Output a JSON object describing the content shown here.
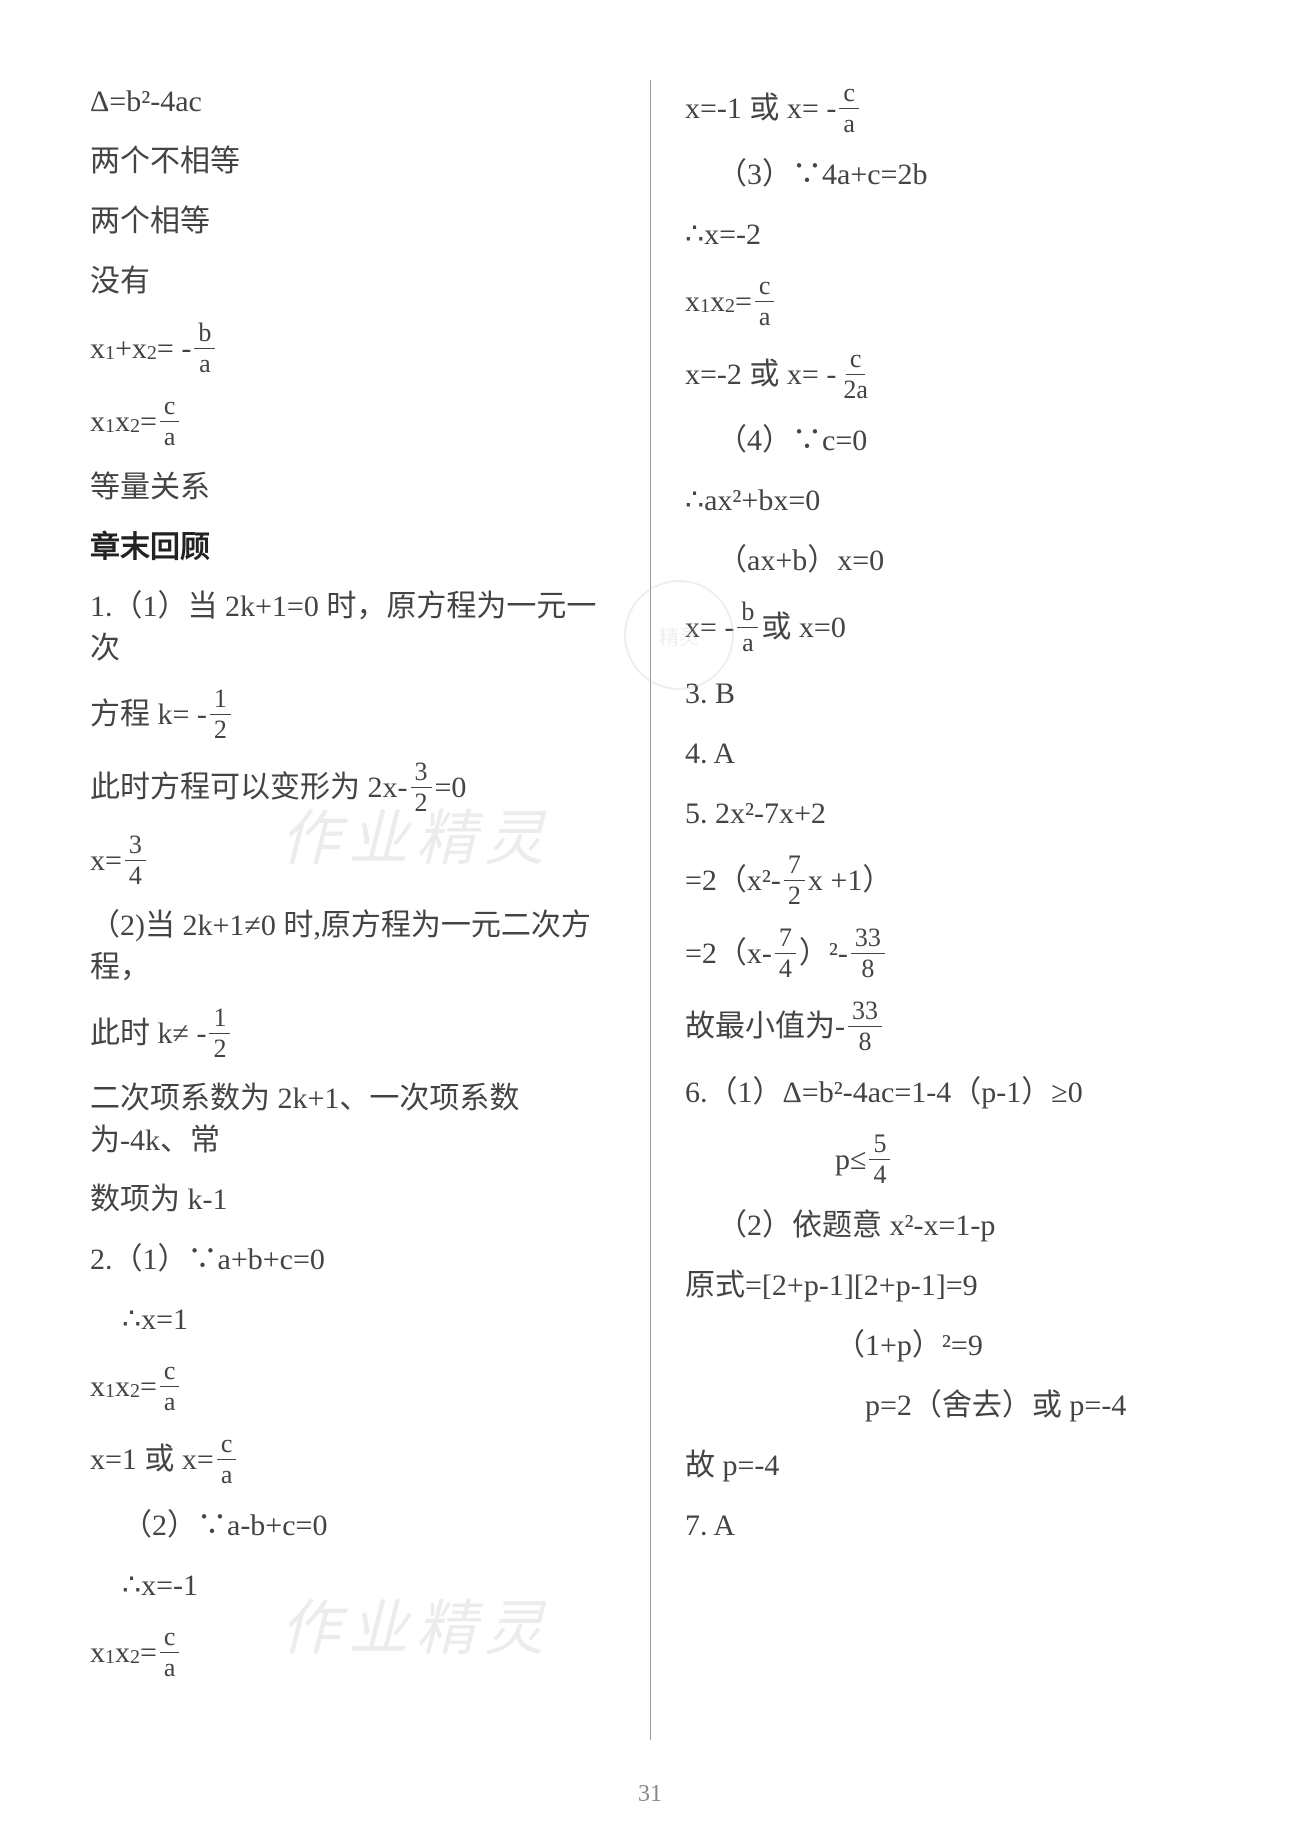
{
  "page_number": "31",
  "text_color": "#444444",
  "bold_color": "#222222",
  "background_color": "#ffffff",
  "divider_color": "#999999",
  "base_fontsize": 30,
  "watermark_text": "作业精灵",
  "watermark_color": "rgba(200,200,200,0.35)",
  "left": [
    {
      "t": "Δ=b²-4ac"
    },
    {
      "t": "两个不相等"
    },
    {
      "t": "两个相等"
    },
    {
      "t": "没有"
    },
    {
      "parts": [
        "x",
        {
          "sub": "1"
        },
        "+x",
        {
          "sub": "2"
        },
        "= -",
        {
          "frac": [
            "b",
            "a"
          ]
        }
      ]
    },
    {
      "parts": [
        "x",
        {
          "sub": "1"
        },
        "x",
        {
          "sub": "2"
        },
        "=",
        {
          "frac": [
            "c",
            "a"
          ]
        }
      ]
    },
    {
      "t": "等量关系"
    },
    {
      "t": "章末回顾",
      "bold": true
    },
    {
      "t": "1.（1）当 2k+1=0 时，原方程为一元一次"
    },
    {
      "parts": [
        "方程 k= -",
        {
          "frac": [
            "1",
            "2"
          ]
        }
      ]
    },
    {
      "parts": [
        "此时方程可以变形为 2x-",
        {
          "frac": [
            "3",
            "2"
          ]
        },
        " =0"
      ]
    },
    {
      "parts": [
        "x=",
        {
          "frac": [
            "3",
            "4"
          ]
        }
      ]
    },
    {
      "t": "（2)当 2k+1≠0 时,原方程为一元二次方程，"
    },
    {
      "parts": [
        "此时 k≠ -",
        {
          "frac": [
            "1",
            "2"
          ]
        }
      ]
    },
    {
      "t": "二次项系数为 2k+1、一次项系数为-4k、常"
    },
    {
      "t": "数项为 k-1"
    },
    {
      "t": "2.（1）∵a+b+c=0"
    },
    {
      "t": "∴x=1",
      "indent": 1
    },
    {
      "parts": [
        "x",
        {
          "sub": "1"
        },
        "x",
        {
          "sub": "2"
        },
        "=",
        {
          "frac": [
            "c",
            "a"
          ]
        }
      ]
    },
    {
      "parts": [
        "x=1 或 x=",
        {
          "frac": [
            "c",
            "a"
          ]
        }
      ]
    },
    {
      "t": "（2）∵a-b+c=0",
      "indent": 1
    },
    {
      "t": "∴x=-1",
      "indent": 1
    },
    {
      "parts": [
        "x",
        {
          "sub": "1"
        },
        "x",
        {
          "sub": "2"
        },
        "=",
        {
          "frac": [
            "c",
            "a"
          ]
        }
      ]
    }
  ],
  "right": [
    {
      "parts": [
        "x=-1 或 x= -",
        {
          "frac": [
            "c",
            "a"
          ]
        }
      ]
    },
    {
      "t": "（3）∵4a+c=2b",
      "indent": 1
    },
    {
      "t": "∴x=-2"
    },
    {
      "parts": [
        "x",
        {
          "sub": "1"
        },
        "x",
        {
          "sub": "2"
        },
        "=",
        {
          "frac": [
            "c",
            "a"
          ]
        }
      ]
    },
    {
      "parts": [
        "x=-2 或 x= -",
        {
          "frac": [
            "c",
            "2a"
          ]
        }
      ]
    },
    {
      "t": "（4）∵c=0",
      "indent": 1
    },
    {
      "t": "∴ax²+bx=0"
    },
    {
      "t": "（ax+b）x=0",
      "indent": 1
    },
    {
      "parts": [
        "x= -",
        {
          "frac": [
            "b",
            "a"
          ]
        },
        "或 x=0"
      ]
    },
    {
      "t": "3. B"
    },
    {
      "t": "4. A"
    },
    {
      "t": "5. 2x²-7x+2"
    },
    {
      "parts": [
        "=2（x²-",
        {
          "frac": [
            "7",
            "2"
          ]
        },
        " x +1）"
      ]
    },
    {
      "parts": [
        "=2（x-",
        {
          "frac": [
            "7",
            "4"
          ]
        },
        "）²-",
        {
          "frac": [
            "33",
            "8"
          ]
        }
      ]
    },
    {
      "parts": [
        "故最小值为-",
        {
          "frac": [
            "33",
            "8"
          ]
        }
      ]
    },
    {
      "t": "6.（1）Δ=b²-4ac=1-4（p-1）≥0"
    },
    {
      "parts": [
        "p≤",
        {
          "frac": [
            "5",
            "4"
          ]
        }
      ],
      "indent": 2
    },
    {
      "t": "（2）依题意 x²-x=1-p",
      "indent": 1
    },
    {
      "t": "原式=[2+p-1][2+p-1]=9"
    },
    {
      "t": "（1+p）²=9",
      "indent": 2
    },
    {
      "t": "p=2（舍去）或 p=-4",
      "indent": 3
    },
    {
      "t": "故 p=-4"
    },
    {
      "t": "7. A"
    }
  ]
}
